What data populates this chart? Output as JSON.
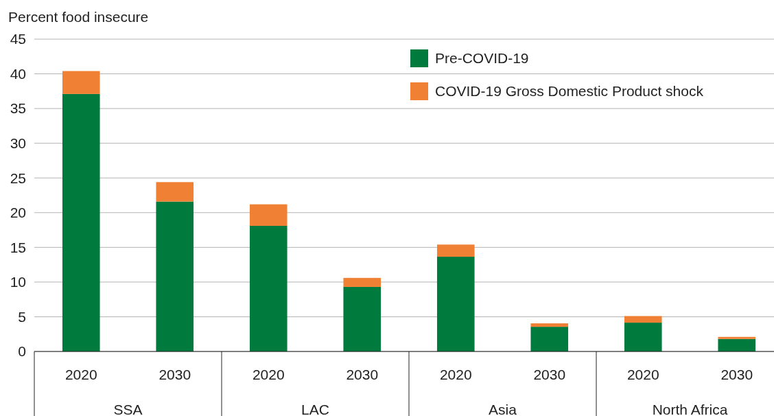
{
  "chart_data": {
    "type": "bar",
    "ylabel": "Percent food insecure",
    "categories": [
      "2020",
      "2030",
      "2020",
      "2030",
      "2020",
      "2030",
      "2020",
      "2030"
    ],
    "series": [
      {
        "name": "Pre-COVID-19",
        "color": "#007a3d",
        "values": [
          37.1,
          21.6,
          18.1,
          9.3,
          13.65,
          3.55,
          4.15,
          1.8
        ]
      },
      {
        "name": "COVID-19 Gross Domestic Product shock",
        "color": "#f08033",
        "values": [
          3.3,
          2.8,
          3.1,
          1.3,
          1.75,
          0.5,
          0.95,
          0.3
        ]
      }
    ],
    "stacked": true,
    "ylim": [
      0,
      45
    ],
    "yticks": [
      0,
      5,
      10,
      15,
      20,
      25,
      30,
      35,
      40,
      45
    ],
    "grid": "y",
    "legend": "top right",
    "annotations": [
      "SSA",
      "LAC",
      "Asia",
      "North Africa"
    ]
  }
}
